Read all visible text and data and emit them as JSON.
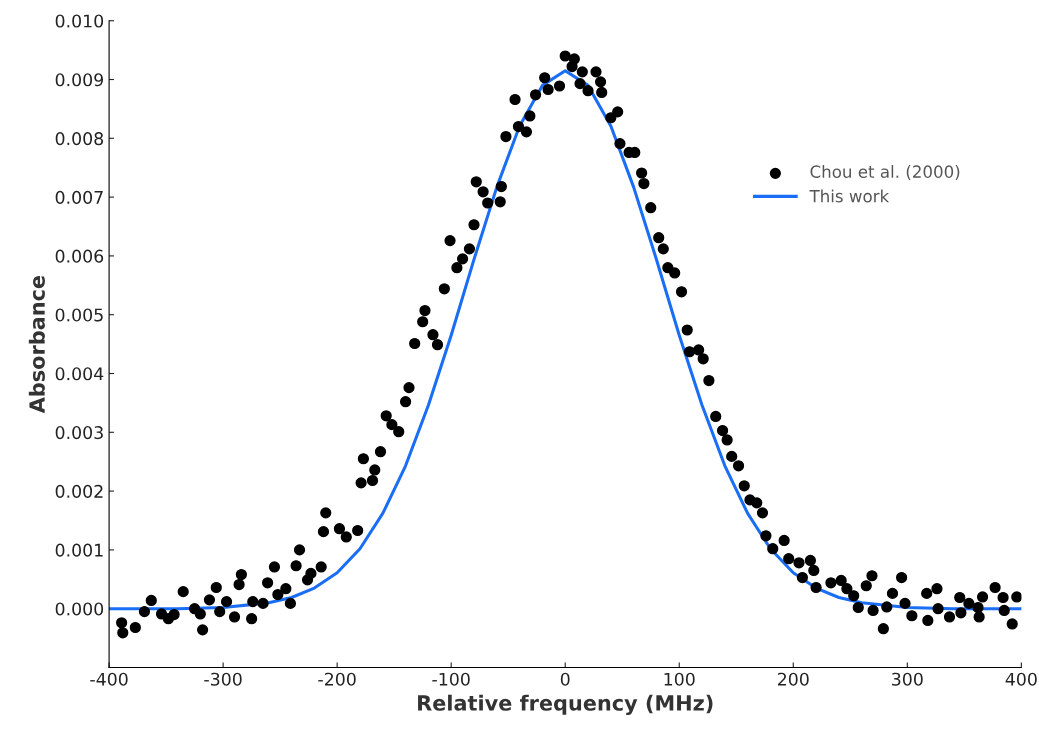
{
  "chart_data": {
    "type": "scatter",
    "xlabel": "Relative frequency (MHz)",
    "ylabel": "Absorbance",
    "xlim": [
      -400,
      400
    ],
    "xticks": [
      -400,
      -300,
      -200,
      -100,
      0,
      100,
      200,
      300,
      400
    ],
    "ylim": [
      -0.001,
      0.01
    ],
    "yticks": [
      {
        "value": 0,
        "label": "0.000"
      },
      {
        "value": 0.001,
        "label": "0.001"
      },
      {
        "value": 0.002,
        "label": "0.002"
      },
      {
        "value": 0.003,
        "label": "0.003"
      },
      {
        "value": 0.004,
        "label": "0.004"
      },
      {
        "value": 0.005,
        "label": "0.005"
      },
      {
        "value": 0.006,
        "label": "0.006"
      },
      {
        "value": 0.007,
        "label": "0.007"
      },
      {
        "value": 0.008,
        "label": "0.008"
      },
      {
        "value": 0.009,
        "label": "0.009"
      },
      {
        "value": 0.01,
        "label": "0.010"
      }
    ],
    "grid": false,
    "legend": "right",
    "series": [
      {
        "name": "Chou et al. (2000)",
        "marker": "circle",
        "color": "#000000",
        "x": [
          -389,
          -388,
          -377,
          -369,
          -363,
          -354,
          -348,
          -343,
          -335,
          -325,
          -320,
          -318,
          -312,
          -306,
          -303,
          -297,
          -290,
          -286,
          -284,
          -275,
          -274,
          -265,
          -261,
          -255,
          -252,
          -245,
          -241,
          -236,
          -233,
          -226,
          -223,
          -214,
          -212,
          -210,
          -198,
          -192,
          -182,
          -179,
          -177,
          -169,
          -167,
          -162,
          -157,
          -152,
          -146,
          -140,
          -137,
          -132,
          -125,
          -123,
          -116,
          -112,
          -106,
          -101,
          -95,
          -90,
          -84,
          -80,
          -78,
          -72,
          -68,
          -56,
          -57,
          -52,
          -44,
          -41,
          -34,
          -31,
          -26,
          -18,
          -15,
          -5,
          0,
          6,
          8,
          13,
          15,
          20,
          27,
          31,
          32,
          40,
          46,
          48,
          56,
          61,
          67,
          69,
          75,
          82,
          86,
          90,
          96,
          102,
          107,
          109,
          117,
          121,
          126,
          132,
          138,
          142,
          146,
          152,
          157,
          162,
          168,
          173,
          176,
          182,
          192,
          196,
          205,
          208,
          215,
          218,
          220,
          233,
          242,
          247,
          253,
          257,
          264,
          269,
          270,
          279,
          282,
          287,
          295,
          298,
          304,
          317,
          318,
          326,
          327,
          337,
          346,
          347,
          354,
          362,
          363,
          366,
          377,
          384,
          385,
          392,
          396
        ],
        "values": [
          -0.00024,
          -0.00041,
          -0.00032,
          -5e-05,
          0.00014,
          -9e-05,
          -0.00017,
          -0.0001,
          0.00029,
          0.0,
          -9e-05,
          -0.00036,
          0.00015,
          0.00036,
          -5e-05,
          0.00012,
          -0.00014,
          0.00041,
          0.00058,
          -0.00017,
          0.00012,
          9e-05,
          0.00044,
          0.00071,
          0.00024,
          0.00034,
          9e-05,
          0.00073,
          0.001,
          0.00049,
          0.0006,
          0.00071,
          0.00131,
          0.00163,
          0.00136,
          0.00122,
          0.00133,
          0.00214,
          0.00255,
          0.00218,
          0.00236,
          0.00267,
          0.00328,
          0.00313,
          0.00301,
          0.00352,
          0.00376,
          0.00451,
          0.00488,
          0.00507,
          0.00466,
          0.00449,
          0.00544,
          0.00626,
          0.0058,
          0.00595,
          0.00612,
          0.00653,
          0.00726,
          0.00709,
          0.0069,
          0.00718,
          0.00692,
          0.00803,
          0.00866,
          0.0082,
          0.00811,
          0.00838,
          0.00874,
          0.00903,
          0.00883,
          0.00889,
          0.0094,
          0.00922,
          0.00935,
          0.00893,
          0.00913,
          0.00881,
          0.00913,
          0.00896,
          0.00878,
          0.00835,
          0.00845,
          0.00791,
          0.00776,
          0.00776,
          0.00741,
          0.00723,
          0.00682,
          0.00631,
          0.00612,
          0.0058,
          0.00571,
          0.00539,
          0.00474,
          0.00437,
          0.0044,
          0.00425,
          0.00388,
          0.00327,
          0.00303,
          0.00287,
          0.00259,
          0.00243,
          0.00209,
          0.00185,
          0.0018,
          0.00163,
          0.00124,
          0.00102,
          0.00116,
          0.00085,
          0.00078,
          0.00053,
          0.00082,
          0.00065,
          0.00036,
          0.00044,
          0.00048,
          0.00034,
          0.00022,
          2e-05,
          0.00039,
          0.00056,
          -3e-05,
          -0.00034,
          3e-05,
          0.00026,
          0.00053,
          9e-05,
          -0.00012,
          0.00026,
          -0.0002,
          0.00034,
          0.0,
          -0.00014,
          0.00019,
          -7e-05,
          9e-05,
          2e-05,
          -0.00014,
          0.0002,
          0.00036,
          0.00019,
          -3e-05,
          -0.00026,
          0.0002
        ]
      },
      {
        "name": "This work",
        "type": "line",
        "marker": "none",
        "line_style": "solid",
        "color": "#1a6ef5",
        "x": [
          -400,
          -340,
          -300,
          -260,
          -240,
          -220,
          -200,
          -180,
          -160,
          -140,
          -120,
          -100,
          -80,
          -60,
          -40,
          -20,
          0,
          20,
          40,
          60,
          80,
          100,
          120,
          140,
          160,
          180,
          200,
          220,
          240,
          260,
          300,
          340,
          400
        ],
        "values": [
          0.0,
          0.0,
          2e-05,
          0.0001,
          0.00019,
          0.00035,
          0.00061,
          0.00102,
          0.00162,
          0.00243,
          0.00346,
          0.00465,
          0.00594,
          0.00717,
          0.00821,
          0.0089,
          0.00915,
          0.0089,
          0.00821,
          0.00717,
          0.00594,
          0.00465,
          0.00346,
          0.00243,
          0.00162,
          0.00102,
          0.00061,
          0.00035,
          0.00019,
          0.0001,
          2e-05,
          0.0,
          0.0
        ]
      }
    ]
  }
}
